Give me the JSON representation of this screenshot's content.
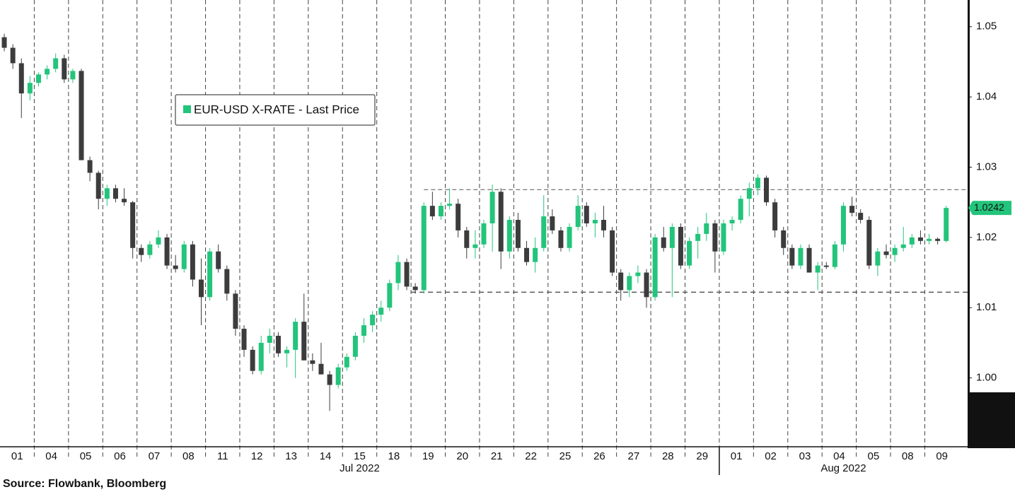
{
  "chart_data": {
    "type": "candlestick",
    "legend": "EUR-USD X-RATE - Last Price",
    "source": "Source: Flowbank, Bloomberg",
    "up_color": "#23c47b",
    "down_color": "#3c3c3c",
    "ylim": [
      0.9902,
      1.0538
    ],
    "yticks": [
      {
        "value": 1,
        "label": "1.00"
      },
      1.01,
      1.02,
      1.03,
      1.04,
      1.05
    ],
    "xlim": [
      -0.5,
      112.5
    ],
    "xticks": [
      {
        "value": 1.5,
        "label": "01"
      },
      {
        "value": 5.5,
        "label": "04"
      },
      {
        "value": 9.5,
        "label": "05"
      },
      {
        "value": 13.5,
        "label": "06"
      },
      {
        "value": 17.5,
        "label": "07"
      },
      {
        "value": 21.5,
        "label": "08"
      },
      {
        "value": 25.5,
        "label": "11"
      },
      {
        "value": 29.5,
        "label": "12"
      },
      {
        "value": 33.5,
        "label": "13"
      },
      {
        "value": 37.5,
        "label": "14"
      },
      {
        "value": 41.5,
        "label": "15"
      },
      {
        "value": 45.5,
        "label": "18"
      },
      {
        "value": 49.5,
        "label": "19"
      },
      {
        "value": 53.5,
        "label": "20"
      },
      {
        "value": 57.5,
        "label": "21"
      },
      {
        "value": 61.5,
        "label": "22"
      },
      {
        "value": 65.5,
        "label": "25"
      },
      {
        "value": 69.5,
        "label": "26"
      },
      {
        "value": 73.5,
        "label": "27"
      },
      {
        "value": 77.5,
        "label": "28"
      },
      {
        "value": 81.5,
        "label": "29"
      },
      {
        "value": 85.5,
        "label": "01"
      },
      {
        "value": 89.5,
        "label": "02"
      },
      {
        "value": 93.5,
        "label": "03"
      },
      {
        "value": 97.5,
        "label": "04"
      },
      {
        "value": 101.5,
        "label": "05"
      },
      {
        "value": 105.5,
        "label": "08"
      },
      {
        "value": 109.5,
        "label": "09"
      }
    ],
    "months": [
      {
        "label": "Jul 2022",
        "start": -0.5,
        "end": 83.5
      },
      {
        "label": "Aug 2022",
        "start": 83.5,
        "end": 112.5
      }
    ],
    "hlines": [
      {
        "value": 1.0268,
        "start": 49
      },
      {
        "value": 1.0122,
        "start": 47.5
      }
    ],
    "last_label": "1.0242",
    "open": [
      1.0485,
      1.047,
      1.0448,
      1.0405,
      1.042,
      1.0432,
      1.044,
      1.0455,
      1.0425,
      1.0437,
      1.031,
      1.0292,
      1.0255,
      1.027,
      1.0255,
      1.025,
      1.0185,
      1.0175,
      1.019,
      1.02,
      1.016,
      1.0155,
      1.019,
      1.014,
      1.0115,
      1.018,
      1.0155,
      1.012,
      1.007,
      1.004,
      1.001,
      1.005,
      1.006,
      1.0035,
      1.004,
      1.008,
      1.0025,
      1.002,
      1.0005,
      0.999,
      1.0015,
      1.003,
      1.006,
      1.0075,
      1.009,
      1.01,
      1.0135,
      1.0165,
      1.013,
      1.0125,
      1.0245,
      1.023,
      1.0245,
      1.0248,
      1.021,
      1.0185,
      1.019,
      1.022,
      1.0265,
      1.018,
      1.0225,
      1.0185,
      1.0165,
      1.0185,
      1.023,
      1.021,
      1.0185,
      1.0215,
      1.0245,
      1.022,
      1.0225,
      1.021,
      1.015,
      1.0125,
      1.0145,
      1.015,
      1.0115,
      1.02,
      1.0185,
      1.0215,
      1.016,
      1.0195,
      1.0205,
      1.022,
      1.018,
      1.022,
      1.0225,
      1.0255,
      1.027,
      1.0285,
      1.025,
      1.021,
      1.0185,
      1.016,
      1.0185,
      1.015,
      1.016,
      1.0158,
      1.019,
      1.0245,
      1.0235,
      1.0225,
      1.016,
      1.018,
      1.0175,
      1.0185,
      1.019,
      1.02,
      1.0195,
      1.0198,
      1.0195
    ],
    "high": [
      1.049,
      1.0475,
      1.0455,
      1.043,
      1.0435,
      1.0445,
      1.0462,
      1.046,
      1.044,
      1.044,
      1.0315,
      1.0295,
      1.0275,
      1.0275,
      1.027,
      1.0252,
      1.019,
      1.0195,
      1.021,
      1.0205,
      1.0175,
      1.0195,
      1.0195,
      1.017,
      1.0185,
      1.019,
      1.016,
      1.0125,
      1.0075,
      1.0045,
      1.006,
      1.007,
      1.0065,
      1.0045,
      1.0085,
      1.012,
      1.0035,
      1.005,
      1.001,
      1.002,
      1.0035,
      1.0065,
      1.0085,
      1.0095,
      1.011,
      1.014,
      1.0175,
      1.017,
      1.0135,
      1.025,
      1.0265,
      1.025,
      1.027,
      1.0255,
      1.0215,
      1.021,
      1.0225,
      1.0275,
      1.027,
      1.023,
      1.0235,
      1.0195,
      1.02,
      1.026,
      1.024,
      1.0215,
      1.022,
      1.026,
      1.025,
      1.0235,
      1.0245,
      1.0215,
      1.0155,
      1.015,
      1.016,
      1.0155,
      1.0205,
      1.0215,
      1.022,
      1.022,
      1.02,
      1.0215,
      1.0235,
      1.0225,
      1.0225,
      1.023,
      1.026,
      1.0278,
      1.029,
      1.0288,
      1.0255,
      1.0215,
      1.019,
      1.019,
      1.019,
      1.0165,
      1.0165,
      1.0195,
      1.025,
      1.0258,
      1.024,
      1.023,
      1.0185,
      1.019,
      1.019,
      1.0215,
      1.0205,
      1.021,
      1.0205,
      1.02,
      1.0245
    ],
    "low": [
      1.0465,
      1.044,
      1.037,
      1.0395,
      1.0415,
      1.0425,
      1.0435,
      1.042,
      1.042,
      1.031,
      1.028,
      1.024,
      1.0245,
      1.025,
      1.0245,
      1.017,
      1.0165,
      1.017,
      1.0185,
      1.0155,
      1.015,
      1.015,
      1.013,
      1.0075,
      1.011,
      1.015,
      1.011,
      1.006,
      1.003,
      1.0005,
      1.0005,
      1.0035,
      1.003,
      1.0015,
      1.0,
      1.0025,
      1.001,
      1.0005,
      0.9953,
      0.9985,
      1.001,
      1.0025,
      1.005,
      1.0065,
      1.008,
      1.0095,
      1.0125,
      1.0125,
      1.012,
      1.012,
      1.0225,
      1.0225,
      1.024,
      1.02,
      1.017,
      1.017,
      1.0185,
      1.018,
      1.0155,
      1.017,
      1.018,
      1.016,
      1.015,
      1.018,
      1.0205,
      1.018,
      1.018,
      1.021,
      1.0215,
      1.02,
      1.02,
      1.0145,
      1.011,
      1.0115,
      1.0135,
      1.01,
      1.011,
      1.018,
      1.0115,
      1.0155,
      1.0155,
      1.017,
      1.0195,
      1.015,
      1.0175,
      1.021,
      1.022,
      1.023,
      1.026,
      1.0245,
      1.02,
      1.0175,
      1.0155,
      1.0155,
      1.015,
      1.0125,
      1.0155,
      1.0155,
      1.018,
      1.023,
      1.022,
      1.0155,
      1.0145,
      1.017,
      1.0165,
      1.018,
      1.0185,
      1.019,
      1.019,
      1.019,
      1.0193
    ],
    "close": [
      1.047,
      1.0448,
      1.0405,
      1.042,
      1.0432,
      1.044,
      1.0455,
      1.0425,
      1.0437,
      1.031,
      1.0292,
      1.0255,
      1.027,
      1.0255,
      1.025,
      1.0185,
      1.0175,
      1.019,
      1.02,
      1.016,
      1.0155,
      1.019,
      1.014,
      1.0115,
      1.018,
      1.0155,
      1.012,
      1.007,
      1.004,
      1.001,
      1.005,
      1.006,
      1.0035,
      1.004,
      1.008,
      1.0025,
      1.002,
      1.0005,
      0.999,
      1.0015,
      1.003,
      1.006,
      1.0075,
      1.009,
      1.01,
      1.0135,
      1.0165,
      1.013,
      1.0125,
      1.0245,
      1.023,
      1.0245,
      1.0248,
      1.021,
      1.0185,
      1.019,
      1.022,
      1.0265,
      1.018,
      1.0225,
      1.0185,
      1.0165,
      1.0185,
      1.023,
      1.021,
      1.0185,
      1.0215,
      1.0245,
      1.022,
      1.0225,
      1.021,
      1.015,
      1.0125,
      1.0145,
      1.015,
      1.0115,
      1.02,
      1.0185,
      1.0215,
      1.016,
      1.0195,
      1.0205,
      1.022,
      1.018,
      1.022,
      1.0225,
      1.0255,
      1.027,
      1.0285,
      1.025,
      1.021,
      1.0185,
      1.016,
      1.0185,
      1.015,
      1.016,
      1.0158,
      1.019,
      1.0245,
      1.0235,
      1.0225,
      1.016,
      1.018,
      1.0175,
      1.0185,
      1.019,
      1.02,
      1.0195,
      1.0198,
      1.0195,
      1.0242
    ]
  }
}
